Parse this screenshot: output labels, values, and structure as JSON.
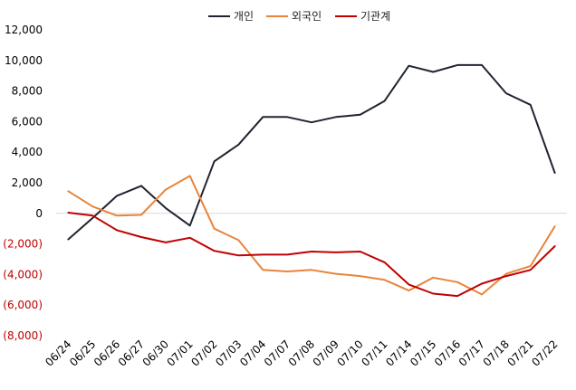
{
  "chart_data": {
    "type": "line",
    "title": "",
    "xlabel": "",
    "ylabel": "",
    "categories": [
      "06/24",
      "06/25",
      "06/26",
      "06/27",
      "06/30",
      "07/01",
      "07/02",
      "07/03",
      "07/04",
      "07/07",
      "07/08",
      "07/09",
      "07/10",
      "07/11",
      "07/14",
      "07/15",
      "07/16",
      "07/17",
      "07/18",
      "07/21",
      "07/22"
    ],
    "ylim": [
      -8000,
      12000
    ],
    "yticks": [
      {
        "value": 12000,
        "label": "12,000"
      },
      {
        "value": 10000,
        "label": "10,000"
      },
      {
        "value": 8000,
        "label": "8,000"
      },
      {
        "value": 6000,
        "label": "6,000"
      },
      {
        "value": 4000,
        "label": "4,000"
      },
      {
        "value": 2000,
        "label": "2,000"
      },
      {
        "value": 0,
        "label": "0"
      },
      {
        "value": -2000,
        "label": "(2,000)"
      },
      {
        "value": -4000,
        "label": "(4,000)"
      },
      {
        "value": -6000,
        "label": "(6,000)"
      },
      {
        "value": -8000,
        "label": "(8,000)"
      }
    ],
    "legend_position": "top-center",
    "grid": false,
    "negative_tick_color": "#c00000",
    "positive_tick_color": "#000000",
    "series": [
      {
        "name": "개인",
        "color": "#1f2430",
        "values": [
          -1700,
          -300,
          1150,
          1800,
          350,
          -800,
          3400,
          4500,
          6300,
          6300,
          5950,
          6300,
          6450,
          7350,
          9650,
          9250,
          9700,
          9700,
          7850,
          7100,
          2650
        ]
      },
      {
        "name": "외국인",
        "color": "#e8843a",
        "values": [
          1450,
          450,
          -150,
          -100,
          1550,
          2450,
          -1000,
          -1750,
          -3700,
          -3800,
          -3700,
          -3950,
          -4100,
          -4350,
          -5050,
          -4200,
          -4500,
          -5300,
          -3950,
          -3450,
          -850
        ]
      },
      {
        "name": "기관계",
        "color": "#c00000",
        "values": [
          50,
          -150,
          -1100,
          -1550,
          -1900,
          -1600,
          -2450,
          -2750,
          -2700,
          -2700,
          -2500,
          -2550,
          -2500,
          -3200,
          -4650,
          -5250,
          -5400,
          -4600,
          -4100,
          -3700,
          -2150
        ]
      }
    ]
  }
}
